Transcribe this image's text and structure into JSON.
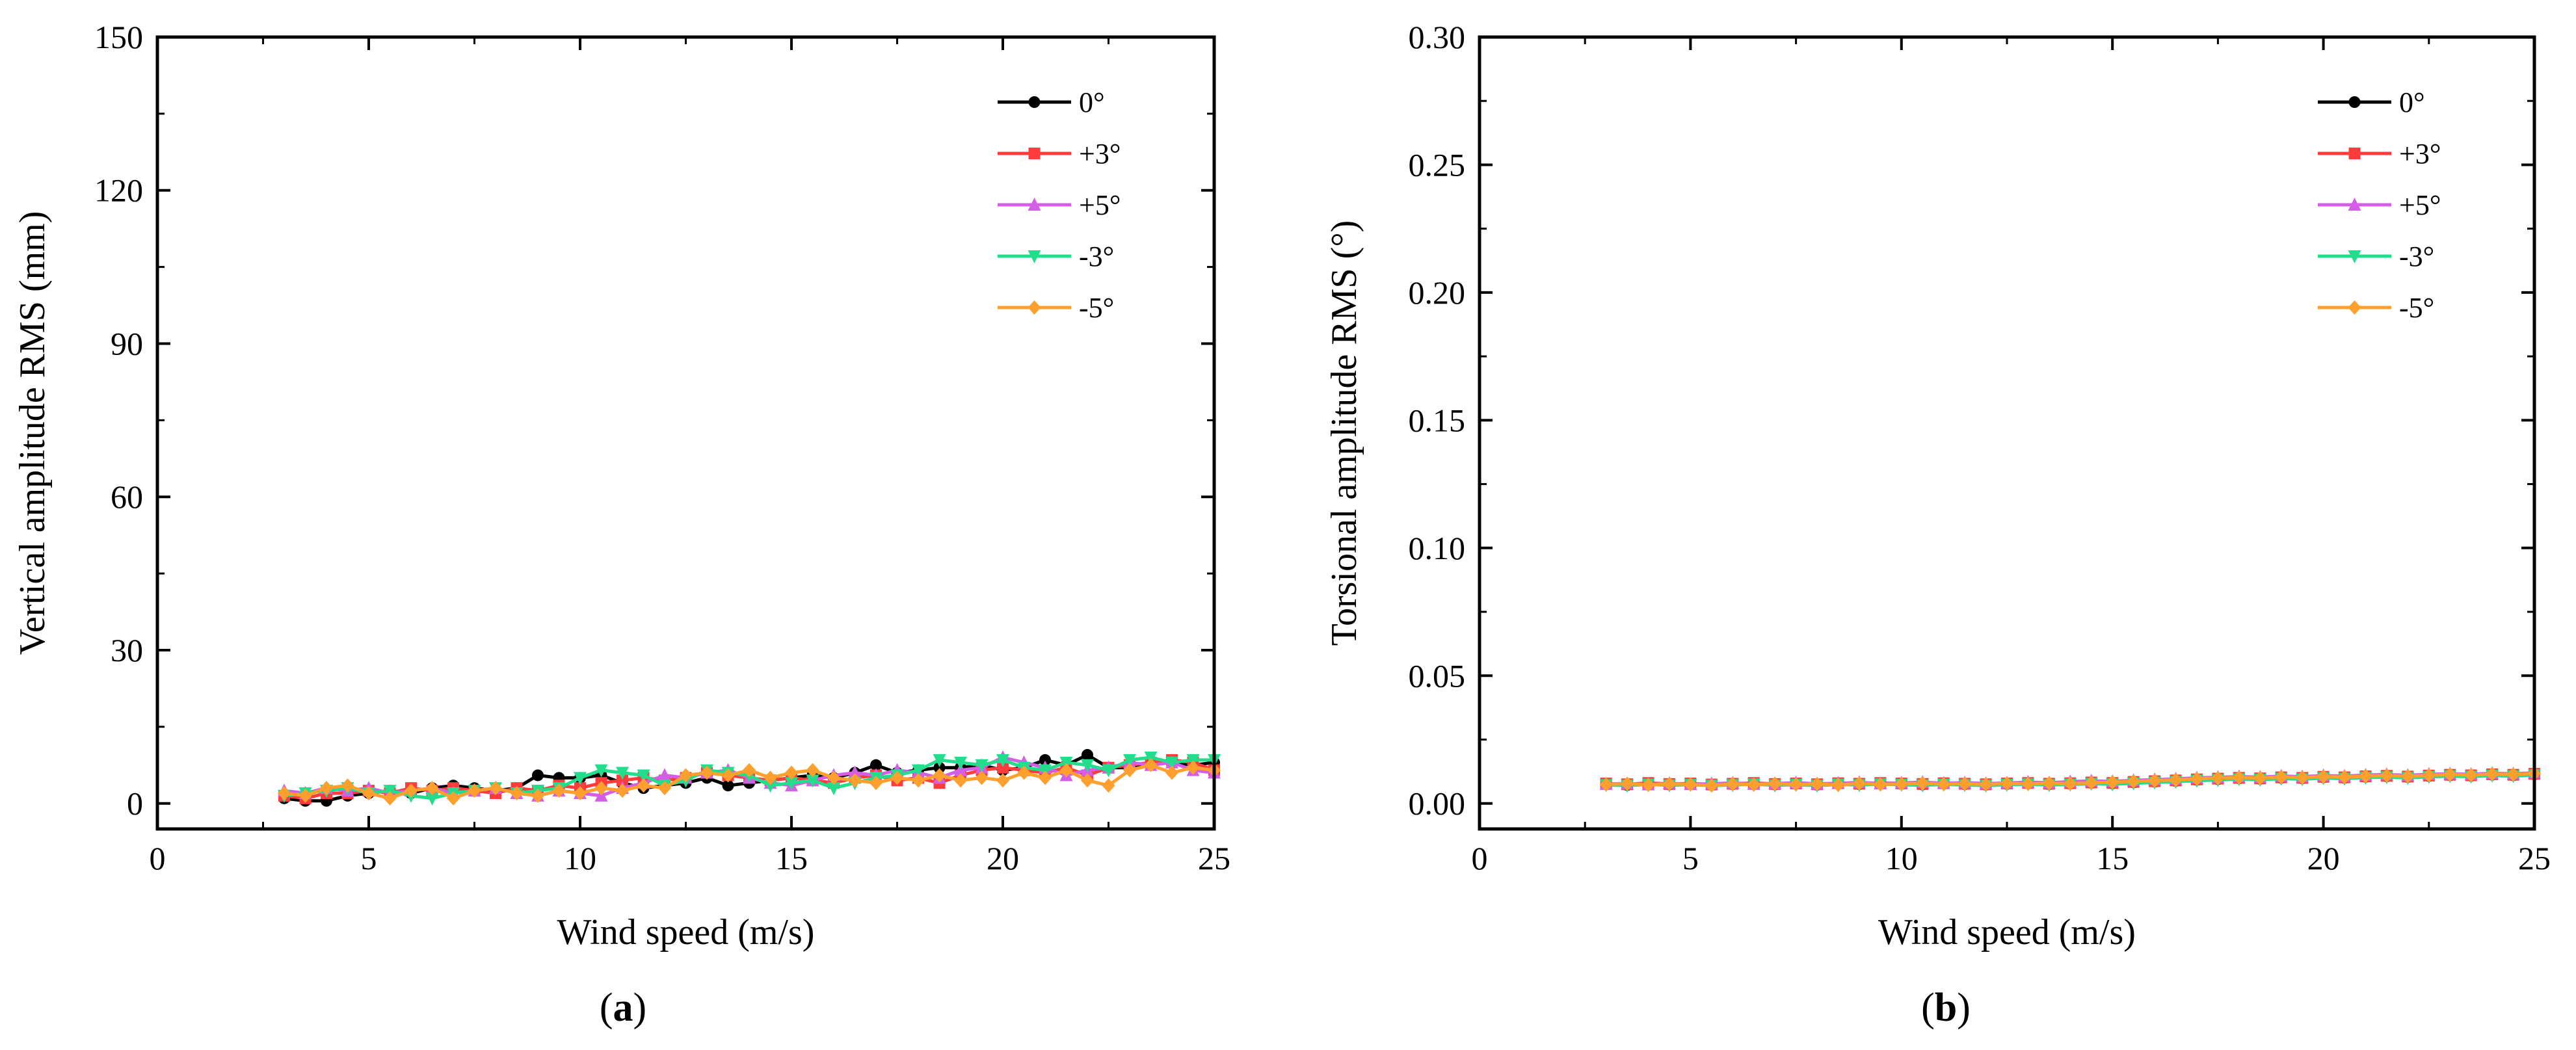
{
  "chart_data": [
    {
      "type": "line",
      "panel_label_open": "(",
      "panel_label_letter": "a",
      "panel_label_close": ")",
      "xlabel": "Wind speed (m/s)",
      "ylabel": "Vertical amplitude RMS (mm)",
      "xlim": [
        0,
        25
      ],
      "ylim": [
        -5,
        150
      ],
      "xticks": [
        0,
        5,
        10,
        15,
        20,
        25
      ],
      "yticks": [
        0,
        30,
        60,
        90,
        120,
        150
      ],
      "ytick_labels": [
        "0",
        "30",
        "60",
        "90",
        "120",
        "150"
      ],
      "legend_position": "top-right",
      "x": [
        3.0,
        3.5,
        4.0,
        4.5,
        5.0,
        5.5,
        6.0,
        6.5,
        7.0,
        7.5,
        8.0,
        8.5,
        9.0,
        9.5,
        10.0,
        10.5,
        11.0,
        11.5,
        12.0,
        12.5,
        13.0,
        13.5,
        14.0,
        14.5,
        15.0,
        15.5,
        16.0,
        16.5,
        17.0,
        17.5,
        18.0,
        18.5,
        19.0,
        19.5,
        20.0,
        20.5,
        21.0,
        21.5,
        22.0,
        22.5,
        23.0,
        23.5,
        24.0,
        24.5,
        25.0
      ],
      "series": [
        {
          "name": "0°",
          "color": "#000000",
          "marker": "circle",
          "values": [
            1.0,
            0.5,
            0.5,
            1.5,
            2.0,
            2.5,
            2.0,
            3.0,
            3.5,
            3.0,
            2.5,
            3.0,
            5.5,
            5.0,
            5.0,
            5.5,
            4.0,
            3.0,
            3.5,
            4.0,
            5.0,
            3.5,
            4.0,
            4.5,
            5.0,
            5.5,
            5.0,
            6.0,
            7.5,
            6.0,
            6.5,
            7.0,
            7.0,
            7.5,
            6.5,
            7.0,
            8.5,
            7.5,
            9.5,
            7.0,
            7.0,
            8.0,
            8.0,
            7.5,
            8.0
          ]
        },
        {
          "name": "+3°",
          "color": "#ff3b3b",
          "marker": "square",
          "values": [
            1.5,
            1.0,
            2.0,
            2.0,
            2.5,
            2.0,
            3.0,
            2.5,
            3.0,
            2.5,
            2.0,
            3.0,
            2.5,
            3.5,
            3.0,
            4.0,
            4.5,
            5.0,
            4.5,
            5.0,
            6.0,
            5.5,
            5.0,
            4.5,
            5.0,
            4.5,
            4.0,
            5.0,
            5.5,
            4.5,
            5.0,
            4.0,
            5.5,
            6.5,
            7.0,
            6.5,
            6.0,
            7.0,
            5.5,
            7.0,
            7.5,
            8.0,
            8.5,
            8.0,
            6.5
          ]
        },
        {
          "name": "+5°",
          "color": "#d45ee6",
          "marker": "triangle-up",
          "values": [
            2.5,
            2.0,
            3.0,
            2.5,
            3.0,
            2.0,
            2.5,
            3.0,
            2.0,
            2.5,
            3.0,
            2.0,
            1.5,
            2.5,
            2.0,
            1.5,
            3.0,
            4.0,
            5.5,
            5.0,
            6.0,
            6.5,
            5.0,
            4.0,
            3.5,
            4.5,
            5.5,
            6.0,
            5.5,
            6.5,
            6.0,
            5.0,
            6.5,
            7.0,
            9.0,
            8.0,
            7.0,
            5.5,
            6.5,
            7.0,
            8.0,
            7.5,
            8.0,
            6.5,
            6.0
          ]
        },
        {
          "name": "-3°",
          "color": "#22dd8c",
          "marker": "triangle-down",
          "values": [
            1.5,
            2.0,
            2.5,
            3.0,
            2.0,
            2.5,
            1.5,
            1.0,
            2.0,
            2.5,
            3.0,
            2.0,
            2.5,
            3.0,
            5.0,
            6.5,
            6.0,
            5.5,
            3.5,
            4.5,
            6.5,
            6.0,
            5.5,
            3.5,
            4.0,
            4.5,
            3.0,
            4.0,
            5.0,
            5.5,
            6.5,
            8.5,
            8.0,
            7.5,
            8.5,
            7.0,
            6.5,
            8.0,
            7.5,
            6.5,
            8.5,
            9.0,
            8.0,
            8.5,
            8.5
          ]
        },
        {
          "name": "-5°",
          "color": "#ff9f2e",
          "marker": "diamond",
          "values": [
            2.0,
            1.5,
            3.0,
            3.5,
            2.0,
            1.0,
            2.5,
            3.0,
            1.0,
            2.5,
            3.0,
            2.0,
            1.5,
            2.5,
            2.0,
            3.0,
            2.5,
            3.5,
            3.0,
            5.5,
            6.0,
            5.5,
            6.5,
            5.0,
            6.0,
            6.5,
            5.0,
            4.5,
            4.0,
            5.0,
            4.5,
            5.5,
            4.5,
            5.0,
            4.5,
            6.0,
            5.0,
            6.5,
            4.5,
            3.5,
            6.5,
            7.5,
            6.0,
            7.0,
            6.5
          ]
        }
      ]
    },
    {
      "type": "line",
      "panel_label_open": "(",
      "panel_label_letter": "b",
      "panel_label_close": ")",
      "xlabel": "Wind speed (m/s)",
      "ylabel": "Torsional amplitude RMS (°)",
      "xlim": [
        0,
        25
      ],
      "ylim": [
        -0.01,
        0.3
      ],
      "xticks": [
        0,
        5,
        10,
        15,
        20,
        25
      ],
      "yticks": [
        0,
        0.05,
        0.1,
        0.15,
        0.2,
        0.25,
        0.3
      ],
      "ytick_labels": [
        "0.00",
        "0.05",
        "0.10",
        "0.15",
        "0.20",
        "0.25",
        "0.30"
      ],
      "legend_position": "top-right",
      "x": [
        3.0,
        3.5,
        4.0,
        4.5,
        5.0,
        5.5,
        6.0,
        6.5,
        7.0,
        7.5,
        8.0,
        8.5,
        9.0,
        9.5,
        10.0,
        10.5,
        11.0,
        11.5,
        12.0,
        12.5,
        13.0,
        13.5,
        14.0,
        14.5,
        15.0,
        15.5,
        16.0,
        16.5,
        17.0,
        17.5,
        18.0,
        18.5,
        19.0,
        19.5,
        20.0,
        20.5,
        21.0,
        21.5,
        22.0,
        22.5,
        23.0,
        23.5,
        24.0,
        24.5,
        25.0
      ],
      "series": [
        {
          "name": "0°",
          "color": "#000000",
          "marker": "circle",
          "values": [
            0.0075,
            0.0072,
            0.0078,
            0.0074,
            0.0076,
            0.0072,
            0.0075,
            0.0078,
            0.0074,
            0.0076,
            0.0073,
            0.0077,
            0.0075,
            0.0078,
            0.0076,
            0.0074,
            0.0077,
            0.0075,
            0.0073,
            0.0076,
            0.0078,
            0.0075,
            0.0077,
            0.008,
            0.0078,
            0.0082,
            0.0085,
            0.0088,
            0.0092,
            0.0095,
            0.0098,
            0.0096,
            0.01,
            0.0098,
            0.0102,
            0.01,
            0.0104,
            0.0106,
            0.0103,
            0.0107,
            0.011,
            0.0108,
            0.0112,
            0.011,
            0.0114
          ]
        },
        {
          "name": "+3°",
          "color": "#ff3b3b",
          "marker": "square",
          "values": [
            0.0078,
            0.0075,
            0.008,
            0.0076,
            0.0078,
            0.0074,
            0.0077,
            0.008,
            0.0076,
            0.0078,
            0.0075,
            0.0079,
            0.0077,
            0.008,
            0.0078,
            0.0076,
            0.0079,
            0.0077,
            0.0075,
            0.0078,
            0.008,
            0.0077,
            0.0079,
            0.0082,
            0.008,
            0.0084,
            0.0087,
            0.009,
            0.0094,
            0.0097,
            0.01,
            0.0098,
            0.0102,
            0.01,
            0.0104,
            0.0102,
            0.0106,
            0.0108,
            0.0105,
            0.0109,
            0.0112,
            0.011,
            0.0114,
            0.0112,
            0.0116
          ]
        },
        {
          "name": "+5°",
          "color": "#d45ee6",
          "marker": "triangle-up",
          "values": [
            0.0076,
            0.0078,
            0.0074,
            0.0079,
            0.0075,
            0.0077,
            0.008,
            0.0076,
            0.0078,
            0.0081,
            0.0077,
            0.0079,
            0.0082,
            0.0078,
            0.008,
            0.0083,
            0.0079,
            0.0081,
            0.0078,
            0.008,
            0.0083,
            0.0081,
            0.0085,
            0.0088,
            0.0086,
            0.009,
            0.0093,
            0.0096,
            0.01,
            0.0102,
            0.0105,
            0.0103,
            0.0107,
            0.0105,
            0.0109,
            0.0107,
            0.0111,
            0.0113,
            0.011,
            0.0114,
            0.0116,
            0.0114,
            0.0118,
            0.0116,
            0.012
          ]
        },
        {
          "name": "-3°",
          "color": "#22dd8c",
          "marker": "triangle-down",
          "values": [
            0.0072,
            0.007,
            0.0074,
            0.0071,
            0.0073,
            0.007,
            0.0072,
            0.0075,
            0.0071,
            0.0073,
            0.007,
            0.0074,
            0.0072,
            0.0075,
            0.0073,
            0.0071,
            0.0074,
            0.0072,
            0.007,
            0.0073,
            0.0075,
            0.0072,
            0.0074,
            0.0077,
            0.0075,
            0.0079,
            0.0082,
            0.0085,
            0.0089,
            0.0092,
            0.0095,
            0.0093,
            0.0097,
            0.0095,
            0.0099,
            0.0097,
            0.0101,
            0.0103,
            0.01,
            0.0104,
            0.0107,
            0.0105,
            0.0109,
            0.0107,
            0.0111
          ]
        },
        {
          "name": "-5°",
          "color": "#ff9f2e",
          "marker": "diamond",
          "values": [
            0.0074,
            0.0077,
            0.0072,
            0.0076,
            0.0074,
            0.007,
            0.0076,
            0.0073,
            0.0077,
            0.0074,
            0.0076,
            0.0072,
            0.0078,
            0.0074,
            0.0076,
            0.0079,
            0.0075,
            0.0077,
            0.0074,
            0.0078,
            0.0076,
            0.0079,
            0.0077,
            0.0081,
            0.0083,
            0.0086,
            0.0089,
            0.0092,
            0.0096,
            0.0099,
            0.0101,
            0.0099,
            0.0103,
            0.0101,
            0.0105,
            0.0103,
            0.0107,
            0.0109,
            0.0106,
            0.011,
            0.0113,
            0.0111,
            0.0115,
            0.0113,
            0.0117
          ]
        }
      ]
    }
  ]
}
